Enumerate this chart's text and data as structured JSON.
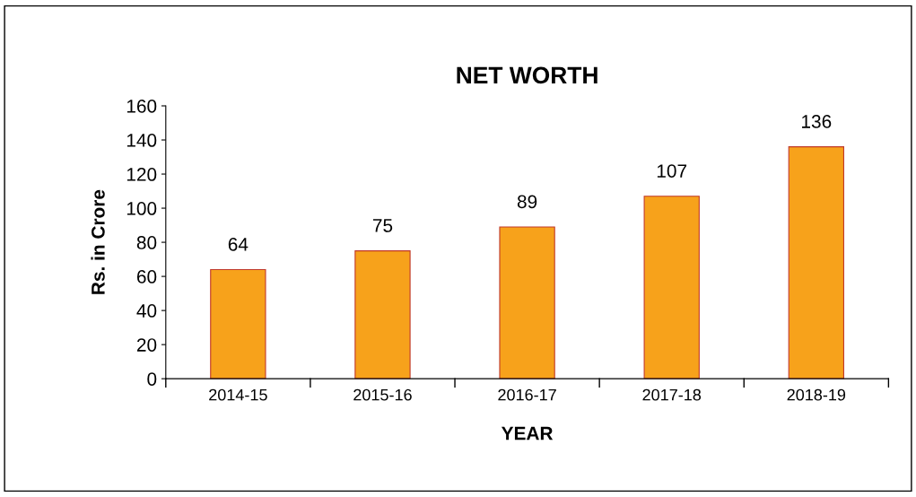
{
  "chart_data": {
    "type": "bar",
    "title": "NET WORTH",
    "xlabel": "YEAR",
    "ylabel": "Rs. in Crore",
    "categories": [
      "2014-15",
      "2015-16",
      "2016-17",
      "2017-18",
      "2018-19"
    ],
    "values": [
      64,
      75,
      89,
      107,
      136
    ],
    "color": "#f7a21b",
    "ylim": [
      0,
      160
    ],
    "yticks": [
      0,
      20,
      40,
      60,
      80,
      100,
      120,
      140,
      160
    ],
    "data_labels": true,
    "grid": false,
    "legend": false
  }
}
